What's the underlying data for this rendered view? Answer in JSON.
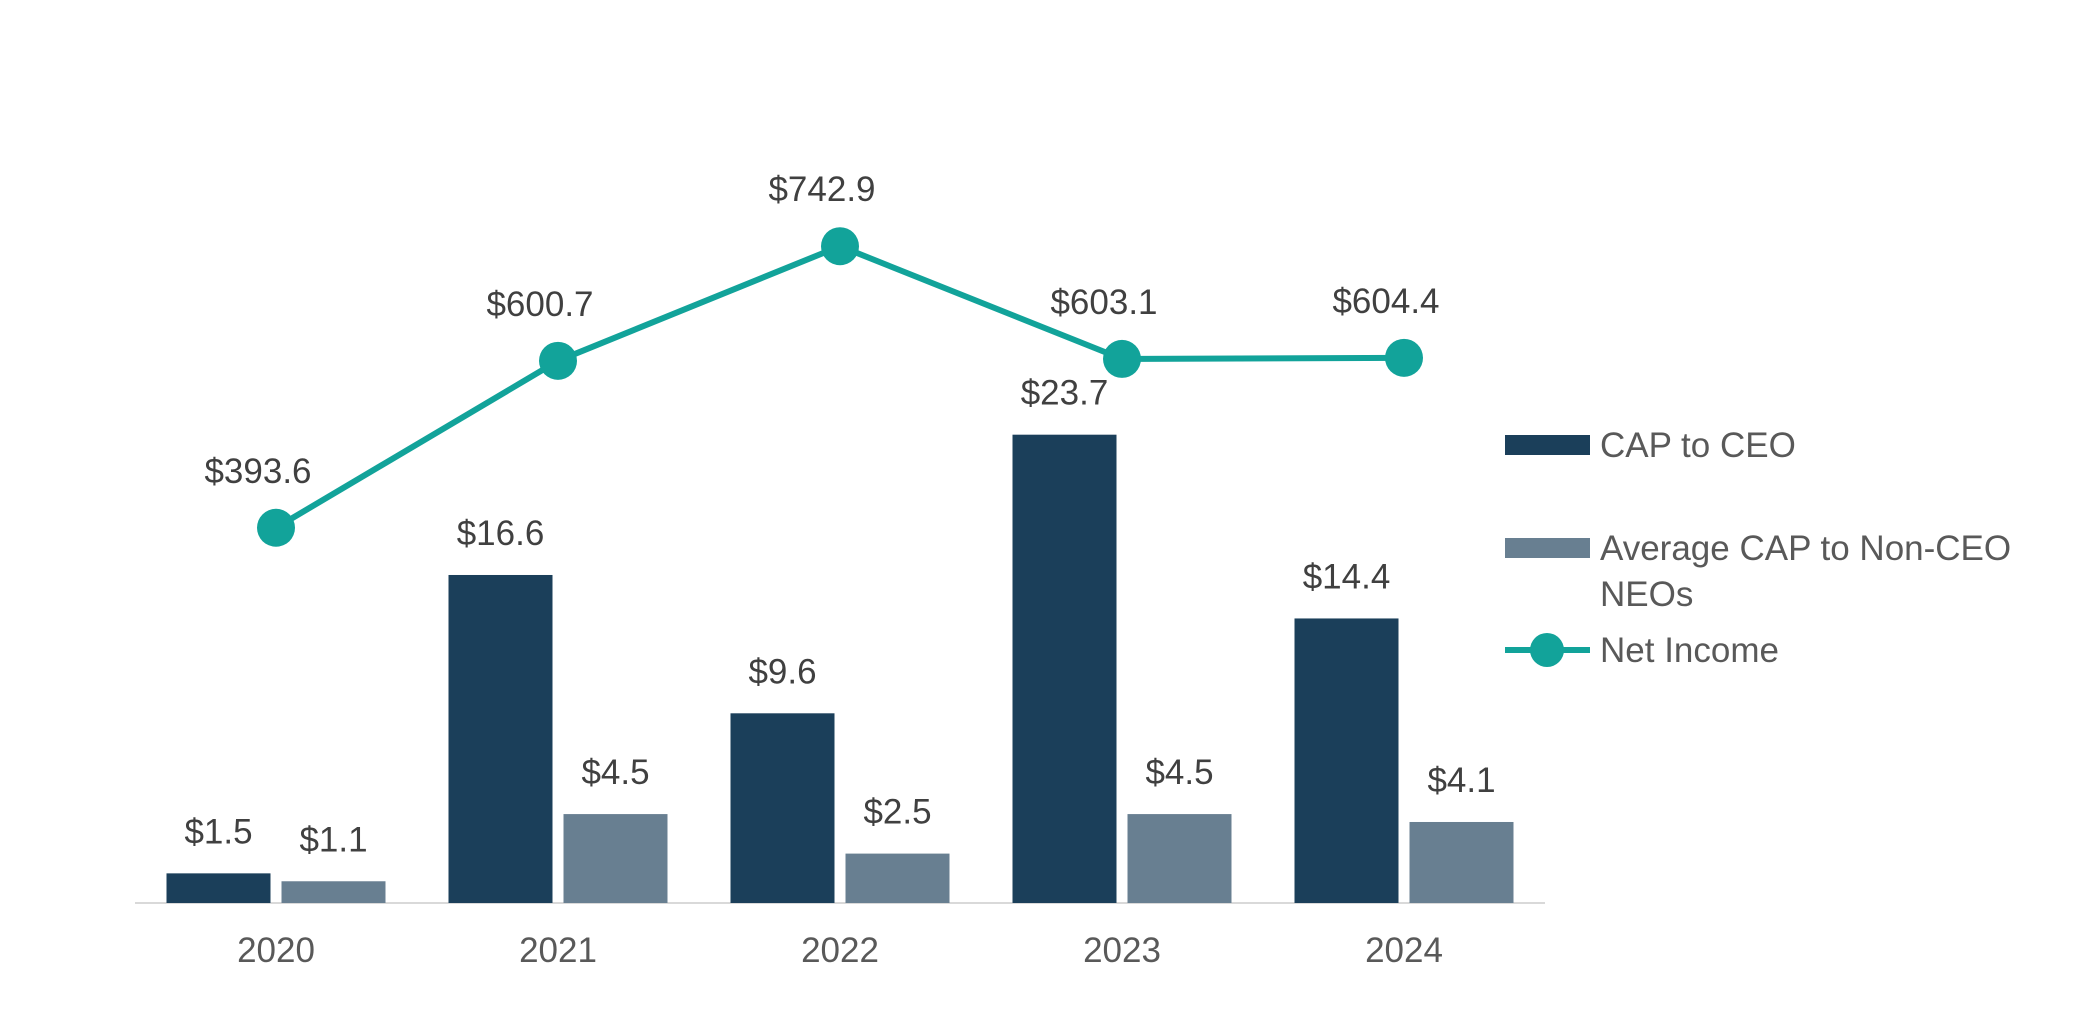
{
  "chart_data": {
    "type": "bar",
    "categories": [
      "2020",
      "2021",
      "2022",
      "2023",
      "2024"
    ],
    "series": [
      {
        "name": "CAP to CEO",
        "kind": "bar",
        "color": "#1b3f5a",
        "values": [
          1.5,
          16.6,
          9.6,
          23.7,
          14.4
        ],
        "labels": [
          "$1.5",
          "$16.6",
          "$9.6",
          "$23.7",
          "$14.4"
        ]
      },
      {
        "name": "Average CAP to Non-CEO NEOs",
        "kind": "bar",
        "color": "#687f91",
        "values": [
          1.1,
          4.5,
          2.5,
          4.5,
          4.1
        ],
        "labels": [
          "$1.1",
          "$4.5",
          "$2.5",
          "$4.5",
          "$4.1"
        ]
      },
      {
        "name": "Net Income",
        "kind": "line",
        "color": "#12a39a",
        "values": [
          393.6,
          600.7,
          742.9,
          603.1,
          604.4
        ],
        "labels": [
          "$393.6",
          "$600.7",
          "$742.9",
          "$603.1",
          "$604.4"
        ]
      }
    ],
    "legend": {
      "position": "right",
      "entries": [
        {
          "lines": [
            "CAP to CEO"
          ]
        },
        {
          "lines": [
            "Average CAP to Non-CEO",
            "NEOs"
          ]
        },
        {
          "lines": [
            "Net Income"
          ]
        }
      ]
    },
    "bar_ylim": [
      0,
      25
    ],
    "line_ylim": [
      0,
      800
    ],
    "grid": false
  }
}
